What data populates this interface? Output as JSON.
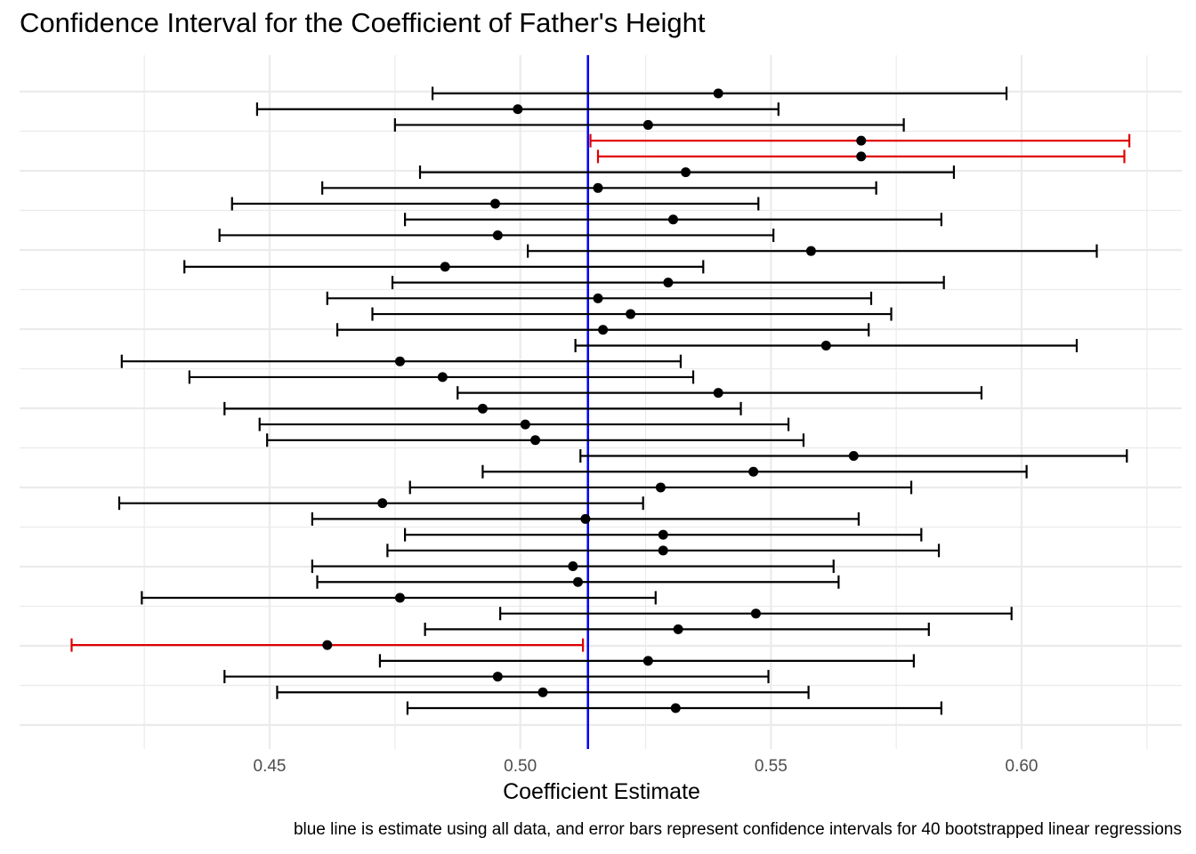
{
  "chart_data": {
    "type": "errorbar",
    "title": "Confidence Interval for the Coefficient of Father's Height",
    "xlabel": "Coefficient Estimate",
    "ylabel": "",
    "caption": "blue line is estimate using all data, and error bars represent confidence intervals for 40 bootstrapped linear regressions",
    "x_ticks": [
      "0.45",
      "0.50",
      "0.55",
      "0.60"
    ],
    "xlim": [
      0.4125,
      0.625
    ],
    "reference_line": {
      "value": 0.5135,
      "color": "#0000ff"
    },
    "colors": {
      "covers": "#000000",
      "misses": "#e00000",
      "grid": "#ebebeb"
    },
    "grid": true,
    "intervals": [
      {
        "estimate": 0.5395,
        "lower": 0.4825,
        "upper": 0.597,
        "misses": false
      },
      {
        "estimate": 0.4995,
        "lower": 0.4475,
        "upper": 0.5515,
        "misses": false
      },
      {
        "estimate": 0.5255,
        "lower": 0.475,
        "upper": 0.5765,
        "misses": false
      },
      {
        "estimate": 0.568,
        "lower": 0.514,
        "upper": 0.6215,
        "misses": true
      },
      {
        "estimate": 0.568,
        "lower": 0.5155,
        "upper": 0.6205,
        "misses": true
      },
      {
        "estimate": 0.533,
        "lower": 0.48,
        "upper": 0.5865,
        "misses": false
      },
      {
        "estimate": 0.5155,
        "lower": 0.4605,
        "upper": 0.571,
        "misses": false
      },
      {
        "estimate": 0.495,
        "lower": 0.4425,
        "upper": 0.5475,
        "misses": false
      },
      {
        "estimate": 0.5305,
        "lower": 0.477,
        "upper": 0.584,
        "misses": false
      },
      {
        "estimate": 0.4955,
        "lower": 0.44,
        "upper": 0.5505,
        "misses": false
      },
      {
        "estimate": 0.558,
        "lower": 0.5015,
        "upper": 0.615,
        "misses": false
      },
      {
        "estimate": 0.485,
        "lower": 0.433,
        "upper": 0.5365,
        "misses": false
      },
      {
        "estimate": 0.5295,
        "lower": 0.4745,
        "upper": 0.5845,
        "misses": false
      },
      {
        "estimate": 0.5155,
        "lower": 0.4615,
        "upper": 0.57,
        "misses": false
      },
      {
        "estimate": 0.522,
        "lower": 0.4705,
        "upper": 0.574,
        "misses": false
      },
      {
        "estimate": 0.5165,
        "lower": 0.4635,
        "upper": 0.5695,
        "misses": false
      },
      {
        "estimate": 0.561,
        "lower": 0.511,
        "upper": 0.611,
        "misses": false
      },
      {
        "estimate": 0.476,
        "lower": 0.4205,
        "upper": 0.532,
        "misses": false
      },
      {
        "estimate": 0.4845,
        "lower": 0.434,
        "upper": 0.5345,
        "misses": false
      },
      {
        "estimate": 0.5395,
        "lower": 0.4875,
        "upper": 0.592,
        "misses": false
      },
      {
        "estimate": 0.4925,
        "lower": 0.441,
        "upper": 0.544,
        "misses": false
      },
      {
        "estimate": 0.501,
        "lower": 0.448,
        "upper": 0.5535,
        "misses": false
      },
      {
        "estimate": 0.503,
        "lower": 0.4495,
        "upper": 0.5565,
        "misses": false
      },
      {
        "estimate": 0.5665,
        "lower": 0.512,
        "upper": 0.621,
        "misses": false
      },
      {
        "estimate": 0.5465,
        "lower": 0.4925,
        "upper": 0.601,
        "misses": false
      },
      {
        "estimate": 0.528,
        "lower": 0.478,
        "upper": 0.578,
        "misses": false
      },
      {
        "estimate": 0.4725,
        "lower": 0.42,
        "upper": 0.5245,
        "misses": false
      },
      {
        "estimate": 0.513,
        "lower": 0.4585,
        "upper": 0.5675,
        "misses": false
      },
      {
        "estimate": 0.5285,
        "lower": 0.477,
        "upper": 0.58,
        "misses": false
      },
      {
        "estimate": 0.5285,
        "lower": 0.4735,
        "upper": 0.5835,
        "misses": false
      },
      {
        "estimate": 0.5105,
        "lower": 0.4585,
        "upper": 0.5625,
        "misses": false
      },
      {
        "estimate": 0.5115,
        "lower": 0.4595,
        "upper": 0.5635,
        "misses": false
      },
      {
        "estimate": 0.476,
        "lower": 0.4245,
        "upper": 0.527,
        "misses": false
      },
      {
        "estimate": 0.547,
        "lower": 0.496,
        "upper": 0.598,
        "misses": false
      },
      {
        "estimate": 0.5315,
        "lower": 0.481,
        "upper": 0.5815,
        "misses": false
      },
      {
        "estimate": 0.4615,
        "lower": 0.4105,
        "upper": 0.5125,
        "misses": true
      },
      {
        "estimate": 0.5255,
        "lower": 0.472,
        "upper": 0.5785,
        "misses": false
      },
      {
        "estimate": 0.4955,
        "lower": 0.441,
        "upper": 0.5495,
        "misses": false
      },
      {
        "estimate": 0.5045,
        "lower": 0.4515,
        "upper": 0.5575,
        "misses": false
      },
      {
        "estimate": 0.531,
        "lower": 0.4775,
        "upper": 0.584,
        "misses": false
      }
    ]
  }
}
